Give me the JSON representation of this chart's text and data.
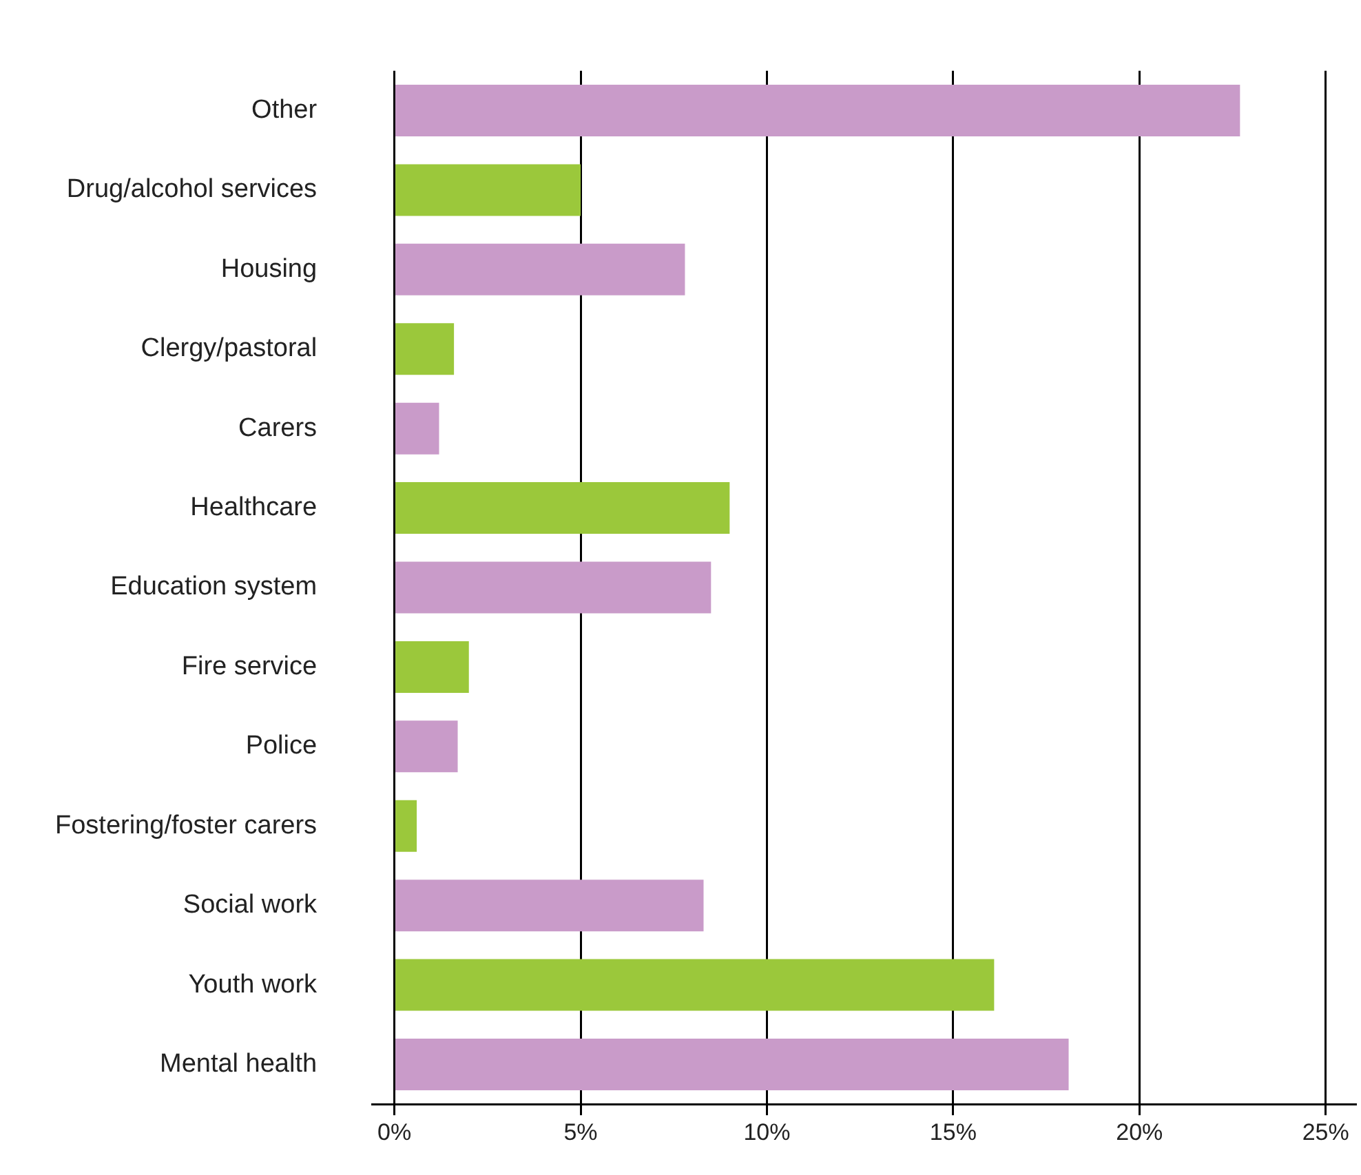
{
  "chart_data": {
    "type": "bar",
    "orientation": "horizontal",
    "categories": [
      "Other",
      "Drug/alcohol services",
      "Housing",
      "Clergy/pastoral",
      "Carers",
      "Healthcare",
      "Education system",
      "Fire service",
      "Police",
      "Fostering/foster carers",
      "Social work",
      "Youth work",
      "Mental health"
    ],
    "values": [
      22.7,
      5.0,
      7.8,
      1.6,
      1.2,
      9.0,
      8.5,
      2.0,
      1.7,
      0.6,
      8.3,
      16.1,
      18.1
    ],
    "colors": [
      "#c99bc9",
      "#9bc83b",
      "#c99bc9",
      "#9bc83b",
      "#c99bc9",
      "#9bc83b",
      "#c99bc9",
      "#9bc83b",
      "#c99bc9",
      "#9bc83b",
      "#c99bc9",
      "#9bc83b",
      "#c99bc9"
    ],
    "xlim": [
      -0.6,
      25.8
    ],
    "xticks": [
      {
        "value": 0,
        "label": "0%"
      },
      {
        "value": 5,
        "label": "5%"
      },
      {
        "value": 10,
        "label": "10%"
      },
      {
        "value": 15,
        "label": "15%"
      },
      {
        "value": 20,
        "label": "20%"
      },
      {
        "value": 25,
        "label": "25%"
      }
    ],
    "grid": "x",
    "legend": false
  }
}
